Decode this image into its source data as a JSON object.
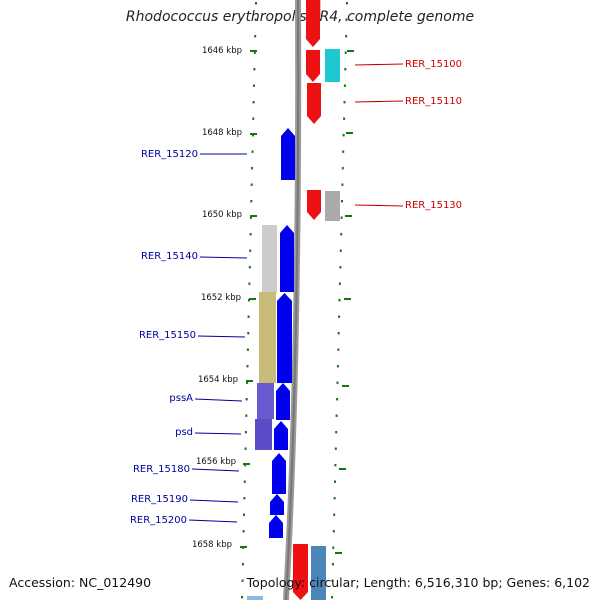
{
  "title": "Rhodococcus erythropolis PR4, complete genome",
  "accession": "Accession: NC_012490",
  "summary": "Topology: circular; Length: 6,516,310 bp; Genes: 6,102",
  "ticks": [
    "1646 kbp",
    "1648 kbp",
    "1650 kbp",
    "1652 kbp",
    "1654 kbp",
    "1656 kbp",
    "1658 kbp"
  ],
  "genes": [
    {
      "label": "",
      "strand": "reverse",
      "color": "#ee1111"
    },
    {
      "label": "RER_15100",
      "strand": "reverse",
      "color": "#ee1111"
    },
    {
      "label": "RER_15110",
      "strand": "reverse",
      "color": "#ee1111"
    },
    {
      "label": "RER_15120",
      "strand": "forward",
      "color": "#0000ee"
    },
    {
      "label": "RER_15130",
      "strand": "reverse",
      "color": "#ee1111"
    },
    {
      "label": "RER_15140",
      "strand": "forward",
      "color": "#0000ee"
    },
    {
      "label": "RER_15150",
      "strand": "forward",
      "color": "#0000ee"
    },
    {
      "label": "pssA",
      "strand": "forward",
      "color": "#0000ee"
    },
    {
      "label": "psd",
      "strand": "forward",
      "color": "#0000ee"
    },
    {
      "label": "RER_15180",
      "strand": "forward",
      "color": "#0000ee"
    },
    {
      "label": "RER_15190",
      "strand": "forward",
      "color": "#0000ee"
    },
    {
      "label": "RER_15200",
      "strand": "forward",
      "color": "#0000ee"
    },
    {
      "label": "",
      "strand": "reverse",
      "color": "#ee1111"
    }
  ],
  "colors": {
    "backbone": "#888888",
    "tick": "#117711",
    "forward_label": "#000099",
    "reverse_label": "#cc0000"
  }
}
